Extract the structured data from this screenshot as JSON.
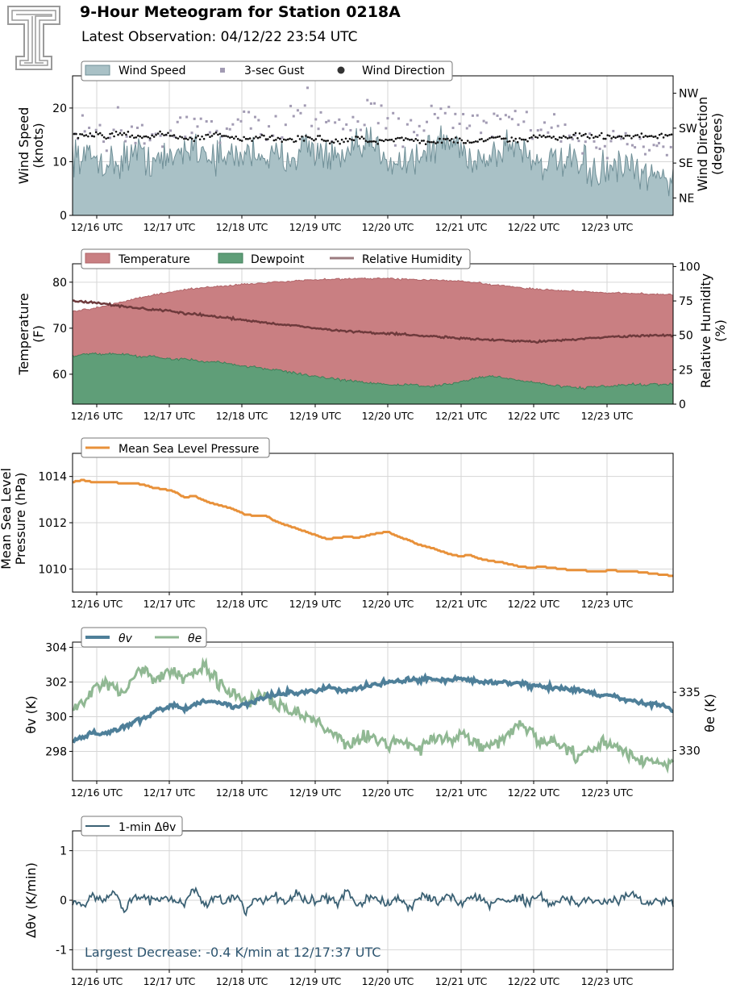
{
  "header": {
    "title": "9-Hour Meteogram for Station 0218A",
    "subtitle": "Latest Observation: 04/12/22 23:54 UTC"
  },
  "colors": {
    "wind_fill": "#a9c1c6",
    "wind_line": "#6f8f97",
    "gust": "#a29bb3",
    "direction": "#111111",
    "temperature_fill": "#c97f82",
    "temperature_line": "#b06468",
    "dewpoint_fill": "#5f9e78",
    "dewpoint_line": "#3f7f58",
    "rh_line": "#6e3a3c",
    "rh_legend": "#9b7b7f",
    "pressure": "#e8913a",
    "theta_v": "#4e7f99",
    "theta_e": "#90b893",
    "delta": "#3b6174",
    "annotation": "#2d5570"
  },
  "chart_data": [
    {
      "type": "area",
      "ylabel": "Wind Speed\n(knots)",
      "y2label": "Wind Direction\n(degrees)",
      "ylim": [
        0,
        26
      ],
      "yticks": [
        0,
        10,
        20
      ],
      "y2ticks": [
        "NW",
        "SW",
        "SE",
        "NE"
      ],
      "y2lim": [
        0,
        360
      ],
      "y2tick_values": [
        315,
        225,
        135,
        45
      ],
      "xticks": [
        "12/16 UTC",
        "12/17 UTC",
        "12/18 UTC",
        "12/19 UTC",
        "12/20 UTC",
        "12/21 UTC",
        "12/22 UTC",
        "12/23 UTC"
      ],
      "grid": true,
      "legend_position": "top-left",
      "series": [
        {
          "name": "Wind Speed",
          "type": "area",
          "approx_mean": 10.5,
          "range": [
            4,
            17
          ],
          "values": [
            12,
            10.5,
            11,
            10,
            9.5,
            10.5,
            12,
            11,
            10.5,
            10,
            11,
            12.5,
            13,
            12,
            11,
            10.5,
            11,
            11.5,
            12,
            11,
            10.5,
            11,
            12,
            13,
            12,
            11,
            10,
            11,
            12,
            13.5,
            12.5,
            11,
            10,
            10.5,
            11,
            12,
            13.5,
            14,
            12.5,
            11,
            10.5,
            11,
            12,
            13.5,
            12.5,
            11,
            10,
            9.5,
            10,
            9.5,
            9,
            8.5,
            8,
            8.5,
            9,
            8,
            7.5,
            7,
            7.5,
            7
          ]
        },
        {
          "name": "3-sec Gust",
          "type": "scatter",
          "approx_range": [
            10,
            24
          ],
          "values": [
            15.5,
            16,
            15,
            14.5,
            16.5,
            17,
            15.5,
            16,
            15,
            14.5,
            16,
            17.5,
            18,
            16.5,
            15,
            16,
            17,
            18,
            17.5,
            16,
            15.5,
            17,
            19,
            21,
            18,
            17,
            16,
            17,
            18.5,
            20,
            19,
            17,
            16,
            16.5,
            17,
            18,
            19.5,
            20,
            18,
            17,
            16,
            16.5,
            17.5,
            19,
            18,
            16.5,
            15.5,
            15,
            15.5,
            15,
            14.5,
            14,
            13.5,
            14,
            14.5,
            13.5,
            13,
            12.5,
            13,
            12.5
          ]
        },
        {
          "name": "Wind Direction",
          "type": "scatter",
          "axis": "y2",
          "approx_mean": 200,
          "values": [
            208,
            205,
            210,
            206,
            208,
            212,
            205,
            202,
            206,
            210,
            204,
            200,
            198,
            204,
            208,
            202,
            198,
            196,
            200,
            204,
            198,
            194,
            196,
            200,
            198,
            192,
            190,
            196,
            200,
            192,
            190,
            194,
            198,
            196,
            192,
            188,
            192,
            196,
            194,
            190,
            192,
            196,
            198,
            194,
            196,
            200,
            204,
            202,
            200,
            204,
            206,
            202,
            204,
            200,
            202,
            206,
            204,
            202,
            205,
            203
          ]
        }
      ]
    },
    {
      "type": "area",
      "ylabel": "Temperature\n(F)",
      "y2label": "Relative Humidity\n(%)",
      "ylim": [
        53.5,
        84
      ],
      "yticks": [
        60,
        70,
        80
      ],
      "y2lim": [
        0,
        102
      ],
      "y2ticks": [
        0,
        25,
        50,
        75,
        100
      ],
      "xticks": [
        "12/16 UTC",
        "12/17 UTC",
        "12/18 UTC",
        "12/19 UTC",
        "12/20 UTC",
        "12/21 UTC",
        "12/22 UTC",
        "12/23 UTC"
      ],
      "grid": true,
      "legend_position": "top-left",
      "series": [
        {
          "name": "Temperature",
          "type": "area",
          "values": [
            73.5,
            74,
            74.3,
            74.8,
            75.3,
            75.8,
            76.3,
            76.8,
            77.2,
            77.6,
            78,
            78.3,
            78.6,
            78.8,
            79,
            79.2,
            79.4,
            79.6,
            79.7,
            79.8,
            80,
            80.2,
            80.3,
            80.4,
            80.5,
            80.6,
            80.7,
            80.7,
            80.8,
            80.8,
            80.8,
            80.8,
            80.7,
            80.6,
            80.5,
            80.5,
            80.4,
            80.3,
            80.2,
            80,
            79.8,
            79.5,
            79.3,
            79,
            78.8,
            78.6,
            78.5,
            78.3,
            78.2,
            78.1,
            78,
            77.9,
            77.8,
            77.7,
            77.6,
            77.5,
            77.5,
            77.4,
            77.4,
            77.3
          ]
        },
        {
          "name": "Dewpoint",
          "type": "area",
          "values": [
            64,
            64.3,
            64.5,
            64.2,
            64.6,
            64.3,
            64.0,
            63.7,
            63.9,
            63.5,
            63.2,
            63.4,
            63.0,
            62.6,
            62.8,
            62.4,
            62.0,
            61.8,
            61.5,
            61.2,
            61.0,
            60.6,
            60.2,
            59.8,
            59.5,
            59.2,
            58.9,
            58.6,
            58.4,
            58.2,
            58.0,
            57.8,
            57.6,
            57.8,
            57.5,
            57.3,
            57.6,
            57.8,
            58.3,
            58.8,
            59.3,
            59.6,
            59.4,
            59.0,
            58.6,
            58.3,
            58.0,
            57.7,
            57.4,
            57.2,
            57.0,
            57.2,
            57.5,
            57.3,
            57.6,
            57.8,
            57.6,
            57.9,
            57.7,
            57.9
          ]
        },
        {
          "name": "Relative Humidity",
          "type": "line",
          "axis": "y2",
          "values": [
            75,
            74.5,
            74,
            73,
            72,
            71,
            70,
            69.5,
            68.5,
            68,
            67,
            66,
            65.5,
            64.5,
            63.5,
            63,
            62,
            61,
            60,
            59,
            58.5,
            57.5,
            57,
            56,
            55,
            54.5,
            53.5,
            53,
            52.5,
            52,
            51.5,
            51.5,
            51,
            50.5,
            50,
            49.5,
            49,
            48.5,
            48,
            47.5,
            47,
            46.5,
            46.5,
            46,
            46,
            45.5,
            45.5,
            46,
            46.5,
            47,
            47.5,
            48,
            48.5,
            49,
            49,
            49.5,
            49.5,
            50,
            50,
            50
          ]
        }
      ]
    },
    {
      "type": "line",
      "ylabel": "Mean Sea Level\nPressure (hPa)",
      "ylim": [
        1009,
        1015
      ],
      "yticks": [
        1010,
        1012,
        1014
      ],
      "xticks": [
        "12/16 UTC",
        "12/17 UTC",
        "12/18 UTC",
        "12/19 UTC",
        "12/20 UTC",
        "12/21 UTC",
        "12/22 UTC",
        "12/23 UTC"
      ],
      "grid": true,
      "legend_position": "top-left",
      "series": [
        {
          "name": "Mean Sea Level Pressure",
          "values": [
            1013.75,
            1013.85,
            1013.75,
            1013.75,
            1013.75,
            1013.7,
            1013.7,
            1013.65,
            1013.5,
            1013.45,
            1013.35,
            1013.1,
            1013.15,
            1012.95,
            1012.8,
            1012.7,
            1012.55,
            1012.35,
            1012.3,
            1012.3,
            1012.05,
            1011.9,
            1011.75,
            1011.6,
            1011.45,
            1011.3,
            1011.35,
            1011.4,
            1011.35,
            1011.45,
            1011.55,
            1011.6,
            1011.4,
            1011.25,
            1011.05,
            1010.95,
            1010.8,
            1010.65,
            1010.55,
            1010.6,
            1010.45,
            1010.35,
            1010.3,
            1010.2,
            1010.1,
            1010.05,
            1010.1,
            1010.05,
            1010.0,
            1009.95,
            1009.95,
            1009.9,
            1009.9,
            1009.95,
            1009.9,
            1009.9,
            1009.85,
            1009.8,
            1009.75,
            1009.7
          ]
        }
      ]
    },
    {
      "type": "line",
      "ylabel": "θv (K)",
      "y2label": "θe (K)",
      "ylim": [
        296.3,
        304.3
      ],
      "yticks": [
        298,
        300,
        302,
        304
      ],
      "y2lim": [
        327.4,
        339.3
      ],
      "y2ticks": [
        330,
        335
      ],
      "xticks": [
        "12/16 UTC",
        "12/17 UTC",
        "12/18 UTC",
        "12/19 UTC",
        "12/20 UTC",
        "12/21 UTC",
        "12/22 UTC",
        "12/23 UTC"
      ],
      "grid": true,
      "legend_position": "top-left",
      "series": [
        {
          "name": "θv",
          "values": [
            298.6,
            298.8,
            299.1,
            299.0,
            299.2,
            299.4,
            299.7,
            299.9,
            300.3,
            300.5,
            300.6,
            300.5,
            300.7,
            300.9,
            300.8,
            300.8,
            300.6,
            300.7,
            300.9,
            301.1,
            301.3,
            301.4,
            301.4,
            301.5,
            301.5,
            301.7,
            301.6,
            301.5,
            301.6,
            301.8,
            301.9,
            302.0,
            302.0,
            302.1,
            302.1,
            302.2,
            302.1,
            302.1,
            302.2,
            302.1,
            302.0,
            302.0,
            302.0,
            301.9,
            301.9,
            301.8,
            301.8,
            301.7,
            301.6,
            301.6,
            301.5,
            301.4,
            301.2,
            301.2,
            301.0,
            300.9,
            300.8,
            300.7,
            300.6,
            300.4
          ]
        },
        {
          "name": "θe",
          "axis": "y2",
          "values": [
            333.6,
            334.2,
            335.1,
            335.8,
            335.2,
            335.0,
            336.3,
            337.2,
            336.1,
            336.6,
            336.9,
            336.0,
            336.6,
            337.1,
            336.2,
            335.4,
            334.8,
            334.2,
            334.6,
            335.1,
            334.0,
            333.6,
            333.2,
            332.8,
            332.4,
            331.6,
            331.2,
            330.6,
            330.9,
            331.4,
            330.7,
            330.4,
            331.1,
            330.6,
            330.2,
            330.8,
            331.1,
            330.7,
            331.3,
            331.1,
            330.5,
            330.2,
            330.9,
            331.6,
            332.3,
            331.4,
            330.6,
            330.9,
            330.3,
            329.9,
            329.4,
            330.1,
            330.7,
            330.4,
            329.9,
            329.5,
            329.2,
            329.1,
            328.8,
            328.6
          ]
        }
      ]
    },
    {
      "type": "line",
      "ylabel": "Δθv (K/min)",
      "ylim": [
        -1.4,
        1.4
      ],
      "yticks": [
        -1,
        0,
        1
      ],
      "xticks": [
        "12/16 UTC",
        "12/17 UTC",
        "12/18 UTC",
        "12/19 UTC",
        "12/20 UTC",
        "12/21 UTC",
        "12/22 UTC",
        "12/23 UTC"
      ],
      "grid": true,
      "legend_position": "top-left",
      "annotation": "Largest Decrease: -0.4 K/min at 12/17:37 UTC",
      "series": [
        {
          "name": "1-min Δθv",
          "values": [
            0.0,
            -0.15,
            0.12,
            -0.08,
            0.2,
            -0.3,
            0.1,
            0.05,
            -0.12,
            0.15,
            0.0,
            -0.1,
            0.4,
            -0.2,
            0.12,
            -0.05,
            0.18,
            -0.4,
            0.1,
            0.0,
            0.15,
            -0.15,
            0.25,
            -0.1,
            0.05,
            0.1,
            -0.12,
            0.3,
            -0.2,
            0.12,
            0.0,
            -0.08,
            0.15,
            -0.25,
            0.05,
            0.1,
            -0.1,
            0.2,
            -0.15,
            0.05,
            0.12,
            -0.18,
            0.1,
            -0.05,
            0.08,
            -0.1,
            0.15,
            -0.12,
            0.0,
            0.05,
            -0.08,
            0.1,
            -0.15,
            0.05,
            0.0,
            0.2,
            -0.1,
            0.05,
            -0.05,
            0.0
          ]
        }
      ]
    }
  ],
  "legends": [
    {
      "items": [
        "Wind Speed",
        "3-sec Gust",
        "Wind Direction"
      ]
    },
    {
      "items": [
        "Temperature",
        "Dewpoint",
        "Relative Humidity"
      ]
    },
    {
      "items": [
        "Mean Sea Level Pressure"
      ]
    },
    {
      "items": [
        "θv",
        "θe"
      ]
    },
    {
      "items": [
        "1-min Δθv"
      ]
    }
  ]
}
